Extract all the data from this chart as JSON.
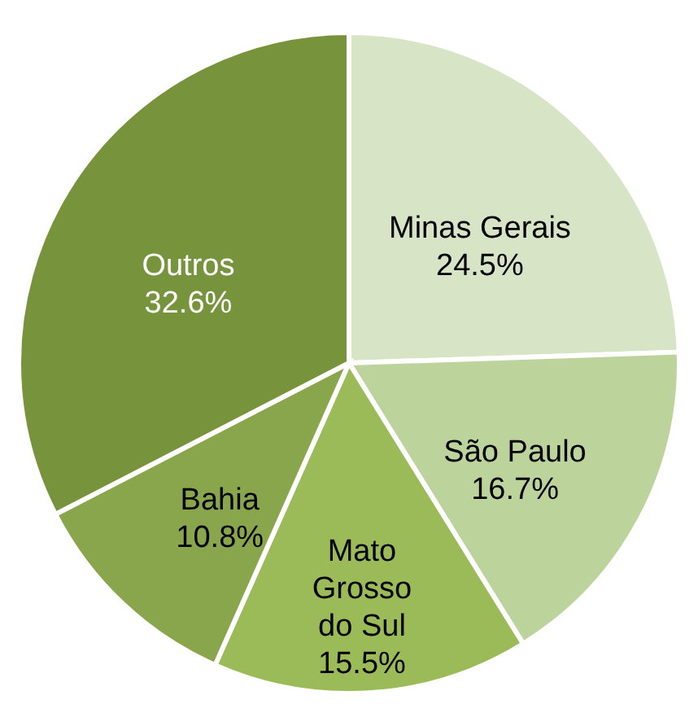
{
  "chart_data": {
    "type": "pie",
    "categories": [
      "Minas Gerais",
      "São Paulo",
      "Mato Grosso do Sul",
      "Bahia",
      "Outros"
    ],
    "values": [
      24.5,
      16.7,
      15.5,
      10.8,
      32.6
    ],
    "value_labels": [
      "24.5%",
      "16.7%",
      "15.5%",
      "10.8%",
      "32.6%"
    ],
    "colors": [
      "#d7e4c5",
      "#bcd49c",
      "#9bbb59",
      "#89a64c",
      "#77933c"
    ]
  }
}
